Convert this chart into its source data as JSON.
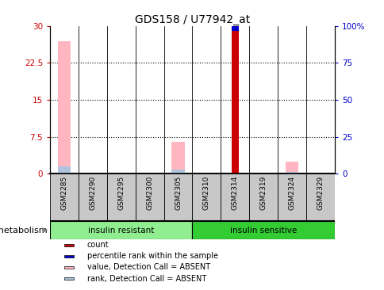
{
  "title": "GDS158 / U77942_at",
  "samples": [
    "GSM2285",
    "GSM2290",
    "GSM2295",
    "GSM2300",
    "GSM2305",
    "GSM2310",
    "GSM2314",
    "GSM2319",
    "GSM2324",
    "GSM2329"
  ],
  "groups": [
    {
      "label": "insulin resistant",
      "color": "#90EE90",
      "start": 0,
      "end": 5
    },
    {
      "label": "insulin sensitive",
      "color": "#33CC33",
      "start": 5,
      "end": 10
    }
  ],
  "group_label": "metabolism",
  "ylim_left": [
    0,
    30
  ],
  "ylim_right": [
    0,
    100
  ],
  "yticks_left": [
    0,
    7.5,
    15,
    22.5,
    30
  ],
  "ytick_labels_left": [
    "0",
    "7.5",
    "15",
    "22.5",
    "30"
  ],
  "yticks_right": [
    0,
    25,
    50,
    75,
    100
  ],
  "ytick_labels_right": [
    "0",
    "25",
    "50",
    "75",
    "100%"
  ],
  "count_values": [
    0,
    0,
    0,
    0,
    0,
    0,
    29,
    0,
    0,
    0
  ],
  "rank_values": [
    0,
    0,
    0,
    0,
    0,
    0,
    2,
    0,
    0,
    0
  ],
  "absent_value_values": [
    27,
    0,
    0,
    0,
    6.5,
    0,
    0,
    0,
    2.5,
    0
  ],
  "absent_rank_values": [
    1.5,
    0,
    0,
    0,
    0.8,
    0,
    0,
    0,
    0.3,
    0
  ],
  "count_color": "#CC0000",
  "rank_color": "#0000CC",
  "absent_value_color": "#FFB6C1",
  "absent_rank_color": "#B0C4DE",
  "cell_bg_color": "#C8C8C8",
  "legend_items": [
    {
      "color": "#CC0000",
      "label": "count"
    },
    {
      "color": "#0000CC",
      "label": "percentile rank within the sample"
    },
    {
      "color": "#FFB6C1",
      "label": "value, Detection Call = ABSENT"
    },
    {
      "color": "#B0C4DE",
      "label": "rank, Detection Call = ABSENT"
    }
  ]
}
